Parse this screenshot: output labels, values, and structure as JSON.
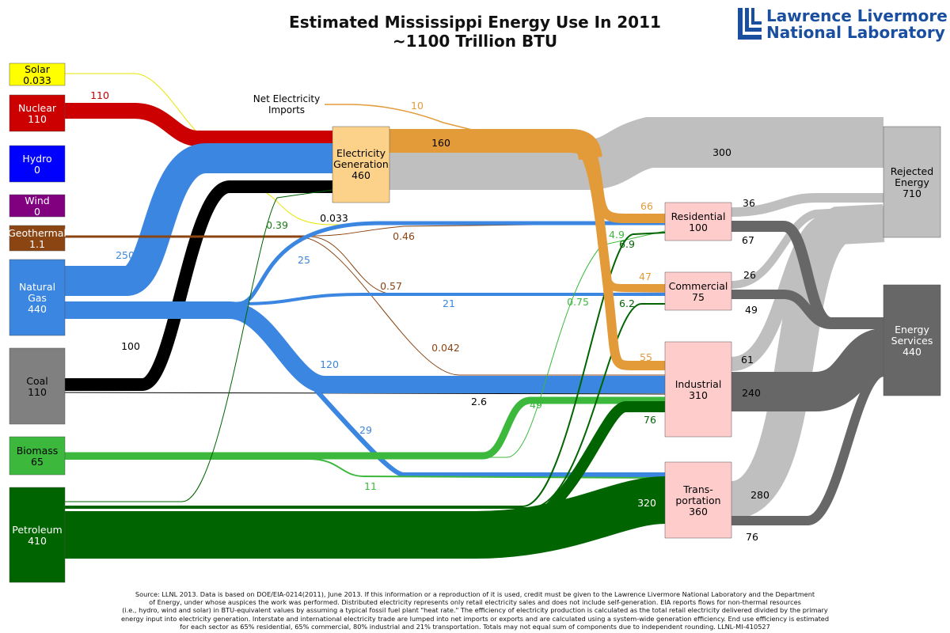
{
  "header": {
    "title_line1": "Estimated Mississippi Energy Use In 2011",
    "title_line2": "~1100 Trillion BTU",
    "logo_line1": "Lawrence Livermore",
    "logo_line2": "National Laboratory"
  },
  "chart_data": {
    "type": "sankey",
    "units": "Trillion BTU",
    "sources": [
      {
        "name": "Solar",
        "value": "0.033",
        "color": "#ffff00"
      },
      {
        "name": "Nuclear",
        "value": "110",
        "color": "#cc0000"
      },
      {
        "name": "Hydro",
        "value": "0",
        "color": "#0000ff"
      },
      {
        "name": "Wind",
        "value": "0",
        "color": "#800080"
      },
      {
        "name": "Geothermal",
        "value": "1.1",
        "color": "#8b4513"
      },
      {
        "name": "Natural Gas",
        "value": "440",
        "color": "#3a86e0"
      },
      {
        "name": "Coal",
        "value": "110",
        "color": "#808080"
      },
      {
        "name": "Biomass",
        "value": "65",
        "color": "#3cb93c"
      },
      {
        "name": "Petroleum",
        "value": "410",
        "color": "#006400"
      }
    ],
    "intermediate": {
      "name": "Electricity Generation",
      "value": "460",
      "imports_label": "Net Electricity Imports"
    },
    "sectors": [
      {
        "name": "Residential",
        "value": "100"
      },
      {
        "name": "Commercial",
        "value": "75"
      },
      {
        "name": "Industrial",
        "value": "310"
      },
      {
        "name": "Transportation",
        "label": "Trans-\nportation",
        "value": "360"
      }
    ],
    "sinks": [
      {
        "name": "Rejected Energy",
        "value": "710"
      },
      {
        "name": "Energy Services",
        "value": "440"
      }
    ],
    "flows": [
      {
        "from": "Solar",
        "to": "Electricity Generation",
        "value": "0.033"
      },
      {
        "from": "Nuclear",
        "to": "Electricity Generation",
        "value": "110"
      },
      {
        "from": "Net Electricity Imports",
        "to": "Electricity Generation",
        "value": "10"
      },
      {
        "from": "Natural Gas",
        "to": "Electricity Generation",
        "value": "250"
      },
      {
        "from": "Coal",
        "to": "Electricity Generation",
        "value": "100"
      },
      {
        "from": "Petroleum",
        "to": "Electricity Generation",
        "value": "0.39"
      },
      {
        "from": "Electricity Generation",
        "to": "Rejected Energy",
        "value": "300"
      },
      {
        "from": "Electricity Generation",
        "to": "Sectors",
        "value": "160"
      },
      {
        "from": "Electricity Generation",
        "to": "Residential",
        "value": "66"
      },
      {
        "from": "Electricity Generation",
        "to": "Commercial",
        "value": "47"
      },
      {
        "from": "Electricity Generation",
        "to": "Industrial",
        "value": "55"
      },
      {
        "from": "Solar",
        "to": "Residential",
        "value": "0.033"
      },
      {
        "from": "Geothermal",
        "to": "Residential",
        "value": "0.46"
      },
      {
        "from": "Geothermal",
        "to": "Commercial",
        "value": "0.57"
      },
      {
        "from": "Geothermal",
        "to": "Industrial",
        "value": "0.042"
      },
      {
        "from": "Natural Gas",
        "to": "Residential",
        "value": "25"
      },
      {
        "from": "Natural Gas",
        "to": "Commercial",
        "value": "21"
      },
      {
        "from": "Natural Gas",
        "to": "Industrial",
        "value": "120"
      },
      {
        "from": "Natural Gas",
        "to": "Transportation",
        "value": "29"
      },
      {
        "from": "Coal",
        "to": "Industrial",
        "value": "2.6"
      },
      {
        "from": "Biomass",
        "to": "Industrial",
        "value": "49"
      },
      {
        "from": "Biomass",
        "to": "Transportation",
        "value": "11"
      },
      {
        "from": "Biomass",
        "to": "Residential",
        "value": "4.9"
      },
      {
        "from": "Petroleum",
        "to": "Residential",
        "value": "6.9"
      },
      {
        "from": "Petroleum",
        "to": "Commercial",
        "value": "6.2"
      },
      {
        "from": "Biomass",
        "to": "Commercial",
        "value": "0.75"
      },
      {
        "from": "Petroleum",
        "to": "Industrial",
        "value": "76"
      },
      {
        "from": "Petroleum",
        "to": "Transportation",
        "value": "320"
      },
      {
        "from": "Residential",
        "to": "Rejected Energy",
        "value": "36"
      },
      {
        "from": "Residential",
        "to": "Energy Services",
        "value": "67"
      },
      {
        "from": "Commercial",
        "to": "Rejected Energy",
        "value": "26"
      },
      {
        "from": "Commercial",
        "to": "Energy Services",
        "value": "49"
      },
      {
        "from": "Industrial",
        "to": "Rejected Energy",
        "value": "61"
      },
      {
        "from": "Industrial",
        "to": "Energy Services",
        "value": "240"
      },
      {
        "from": "Transportation",
        "to": "Rejected Energy",
        "value": "280"
      },
      {
        "from": "Transportation",
        "to": "Energy Services",
        "value": "76"
      }
    ]
  },
  "source_note": [
    "Source: LLNL 2013. Data is based on DOE/EIA-0214(2011), June 2013. If this information or a reproduction of it is used, credit must be given to the Lawrence Livermore National Laboratory and the Department",
    "of Energy, under whose auspices the work was performed. Distributed electricity represents only retail electricity sales and does not include self-generation.  EIA reports flows for non-thermal resources",
    "(i.e., hydro, wind and solar) in BTU-equivalent values by assuming a typical fossil fuel plant \"heat rate.\"  The efficiency of electricity production is calculated as the total retail electricity delivered divided by the primary",
    "energy input into electricity generation.  Interstate and international electricity trade are lumped into net imports or exports and are calculated using a system-wide generation efficiency.  End use efficiency is estimated",
    "for each sector as 65% residential, 65% commercial, 80% industrial and 21% transportation. Totals may not equal sum of components due to independent rounding. LLNL-MI-410527"
  ]
}
